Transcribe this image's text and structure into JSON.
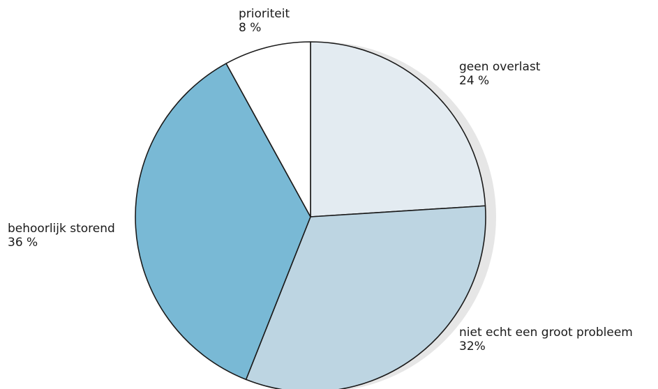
{
  "chart_data": {
    "type": "pie",
    "slices": [
      {
        "name": "geen overlast",
        "value": 24,
        "value_label": "24 %",
        "color": "#e3ebf1"
      },
      {
        "name": "niet echt een groot probleem",
        "value": 32,
        "value_label": "32%",
        "color": "#bdd5e2"
      },
      {
        "name": "behoorlijk storend",
        "value": 36,
        "value_label": "36 %",
        "color": "#79b9d5"
      },
      {
        "name": "prioriteit",
        "value": 8,
        "value_label": "8 %",
        "color": "#ffffff"
      }
    ],
    "start_angle_deg": 0,
    "direction": "clockwise",
    "shadow_color": "#e6e6e6",
    "stroke_color": "#1a1a1a",
    "legend": "none (labels placed beside slices)"
  }
}
